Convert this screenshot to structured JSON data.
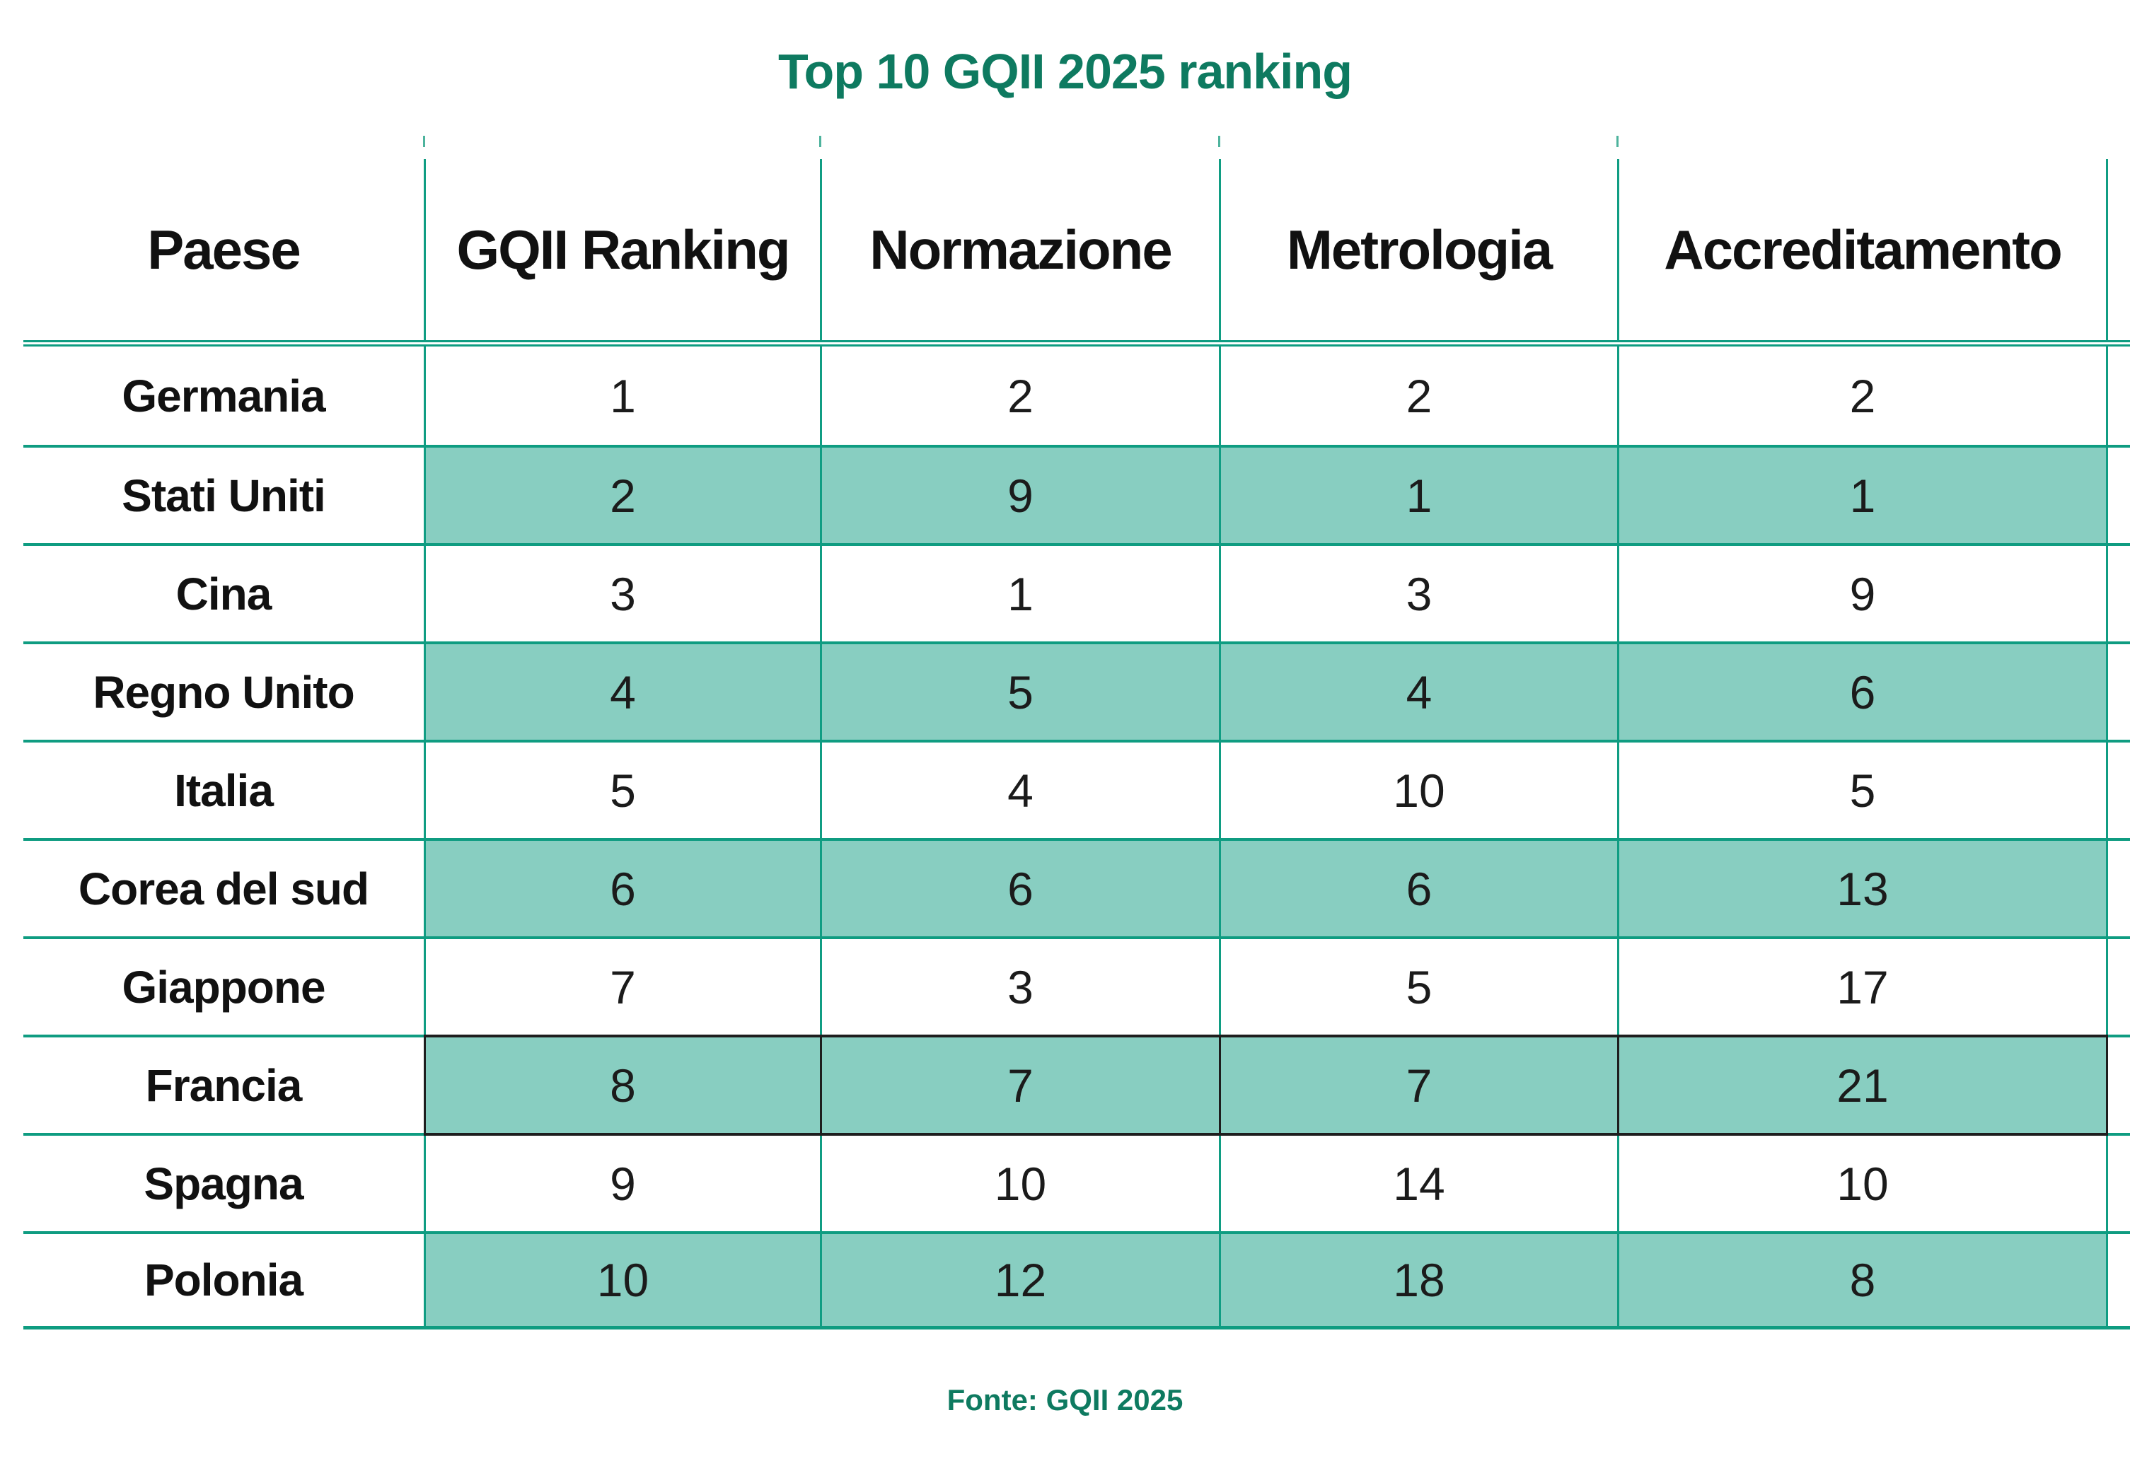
{
  "chart_data": {
    "type": "table",
    "title": "Top 10 GQII 2025 ranking",
    "source": "Fonte: GQII 2025",
    "columns": [
      "Paese",
      "GQII Ranking",
      "Normazione",
      "Metrologia",
      "Accreditamento"
    ],
    "rows": [
      [
        "Germania",
        1,
        2,
        2,
        2
      ],
      [
        "Stati Uniti",
        2,
        9,
        1,
        1
      ],
      [
        "Cina",
        3,
        1,
        3,
        9
      ],
      [
        "Regno Unito",
        4,
        5,
        4,
        6
      ],
      [
        "Italia",
        5,
        4,
        10,
        5
      ],
      [
        "Corea del sud",
        6,
        6,
        6,
        13
      ],
      [
        "Giappone",
        7,
        3,
        5,
        17
      ],
      [
        "Francia",
        8,
        7,
        7,
        21
      ],
      [
        "Spagna",
        9,
        10,
        14,
        10
      ],
      [
        "Polonia",
        10,
        12,
        18,
        8
      ]
    ],
    "highlighted_rows": [
      "Stati Uniti",
      "Regno Unito",
      "Corea del sud",
      "Francia",
      "Polonia"
    ],
    "dark_border_row": "Francia",
    "legend_position": "none",
    "grid": true
  },
  "colors": {
    "title_green": "#0e7a60",
    "grid_line_green": "#0f9c81",
    "highlight_teal": "#88cec1",
    "dark_border": "#1e1e1e",
    "text": "#131313",
    "background": "#ffffff"
  }
}
